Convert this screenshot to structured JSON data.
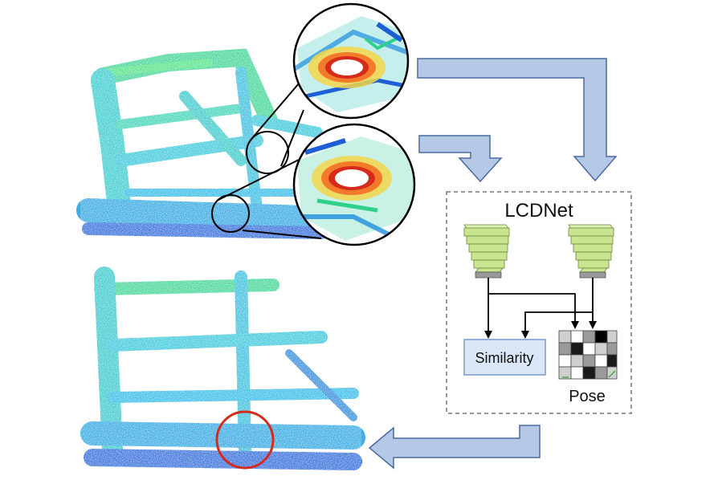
{
  "figure": {
    "box_title": "LCDNet",
    "similarity_label": "Similarity",
    "pose_label": "Pose"
  },
  "colors": {
    "arrow_fill": "#b5c8e6",
    "arrow_stroke": "#4a6aa0",
    "encoder_green": "#c9e58f",
    "encoder_gray": "#9a9a9a",
    "similarity_fill": "#dbe7f7",
    "loop_circle": "#d62a1a",
    "map_cyan": "#27c3d8",
    "map_green": "#2ed18a",
    "map_blue": "#1f5fd6"
  },
  "icons": [
    "point-cloud-map",
    "zoom-lens",
    "encoder-stack",
    "pose-matrix"
  ]
}
